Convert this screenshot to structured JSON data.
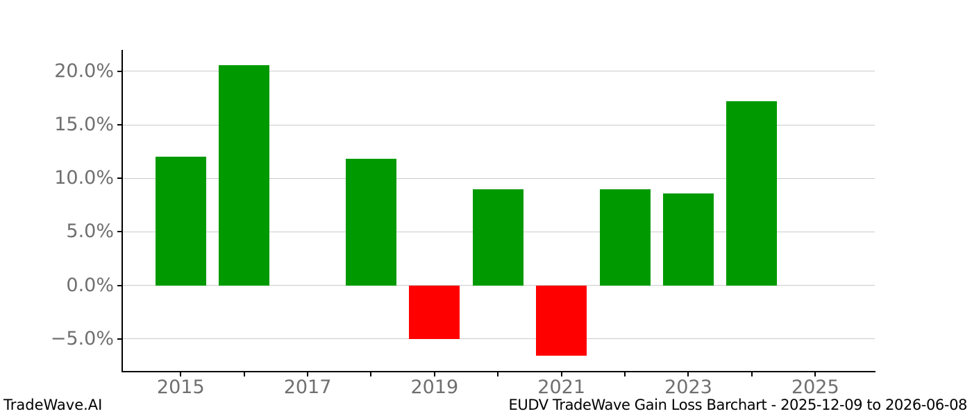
{
  "chart_data": {
    "type": "bar",
    "title": "",
    "xlabel": "",
    "ylabel": "",
    "x": [
      2015,
      2016,
      2017,
      2018,
      2019,
      2020,
      2021,
      2022,
      2023,
      2024
    ],
    "values": [
      12.0,
      20.6,
      0.0,
      11.85,
      -5.0,
      9.0,
      -6.6,
      8.95,
      8.6,
      17.2
    ],
    "units": "percent",
    "colors": {
      "gain": "#009a00",
      "loss": "#ff0000"
    },
    "grid": true,
    "legend_position": "none",
    "ylim": [
      -8,
      22
    ],
    "xlim": [
      2014.078,
      2025.938
    ],
    "yticks": [
      {
        "v": 20,
        "label": "20.0%"
      },
      {
        "v": 15,
        "label": "15.0%"
      },
      {
        "v": 10,
        "label": "10.0%"
      },
      {
        "v": 5,
        "label": "5.0%"
      },
      {
        "v": 0,
        "label": "0.0%"
      },
      {
        "v": -5,
        "label": "−5.0%"
      }
    ],
    "xticks": [
      {
        "v": 2015,
        "label": "2015"
      },
      {
        "v": 2016,
        "label": ""
      },
      {
        "v": 2017,
        "label": "2017"
      },
      {
        "v": 2018,
        "label": ""
      },
      {
        "v": 2019,
        "label": "2019"
      },
      {
        "v": 2020,
        "label": ""
      },
      {
        "v": 2021,
        "label": "2021"
      },
      {
        "v": 2022,
        "label": ""
      },
      {
        "v": 2023,
        "label": "2023"
      },
      {
        "v": 2024,
        "label": ""
      },
      {
        "v": 2025,
        "label": "2025"
      }
    ]
  },
  "footer": {
    "left": "TradeWave.AI",
    "right": "EUDV TradeWave Gain Loss Barchart - 2025-12-09 to 2026-06-08"
  },
  "palette": {
    "background": "#ffffff",
    "gridline": "#cbcbcb",
    "spine": "#000000",
    "tick_label": "#6f6f6f",
    "footer_text": "#000000"
  }
}
